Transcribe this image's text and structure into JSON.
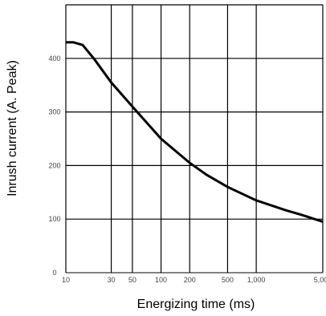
{
  "chart_data": {
    "type": "line",
    "title": "",
    "xlabel": "Energizing time (ms)",
    "ylabel": "Inrush current (A. Peak)",
    "x_scale": "log",
    "xlim": [
      10,
      5000
    ],
    "ylim": [
      0,
      500
    ],
    "grid": true,
    "x_ticks": [
      {
        "value": 10,
        "label": "10"
      },
      {
        "value": 30,
        "label": "30"
      },
      {
        "value": 50,
        "label": "50"
      },
      {
        "value": 100,
        "label": "100"
      },
      {
        "value": 200,
        "label": "200"
      },
      {
        "value": 500,
        "label": "500"
      },
      {
        "value": 1000,
        "label": "1,000"
      },
      {
        "value": 5000,
        "label": "5,000"
      }
    ],
    "y_ticks": [
      {
        "value": 0,
        "label": "0"
      },
      {
        "value": 100,
        "label": "100"
      },
      {
        "value": 200,
        "label": "200"
      },
      {
        "value": 300,
        "label": "300"
      },
      {
        "value": 400,
        "label": "400"
      }
    ],
    "series": [
      {
        "x": [
          10,
          12,
          15,
          20,
          30,
          50,
          100,
          200,
          300,
          500,
          1000,
          2000,
          3000,
          5000
        ],
        "y": [
          430,
          430,
          425,
          398,
          355,
          310,
          250,
          205,
          183,
          160,
          135,
          117,
          108,
          95
        ]
      }
    ]
  }
}
